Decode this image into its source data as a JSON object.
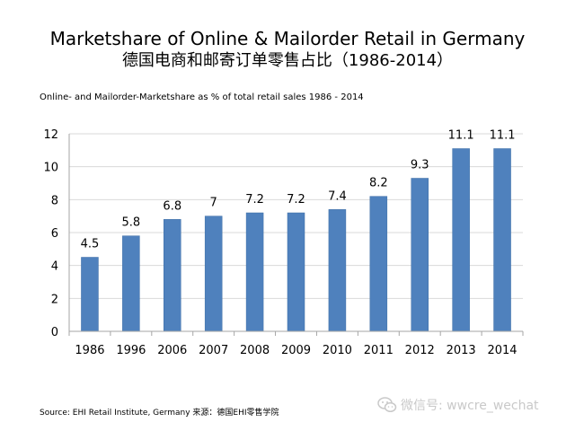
{
  "header": {
    "title": "Marketshare of Online & Mailorder Retail in Germany",
    "subtitle": "德国电商和邮寄订单零售占比（1986-2014）"
  },
  "chart_caption": "Online- and Mailorder-Marketshare as % of total retail sales 1986 - 2014",
  "footer": {
    "source": "Source: EHI Retail  Institute, Germany 来源：德国EHI零售学院",
    "watermark": "微信号: wwcre_wechat",
    "watermark_icon": "wechat-icon"
  },
  "colors": {
    "bar": "#4f81bd",
    "bar_stroke": "#3d6ea6",
    "grid": "#d9d9d9",
    "axis": "#a6a6a6"
  },
  "chart_data": {
    "type": "bar",
    "categories": [
      "1986",
      "1996",
      "2006",
      "2007",
      "2008",
      "2009",
      "2010",
      "2011",
      "2012",
      "2013",
      "2014"
    ],
    "values": [
      4.5,
      5.8,
      6.8,
      7,
      7.2,
      7.2,
      7.4,
      8.2,
      9.3,
      11.1,
      11.1
    ],
    "data_labels": [
      "4.5",
      "5.8",
      "6.8",
      "7",
      "7.2",
      "7.2",
      "7.4",
      "8.2",
      "9.3",
      "11.1",
      "11.1"
    ],
    "yticks": [
      "0",
      "2",
      "4",
      "6",
      "8",
      "10",
      "12"
    ],
    "ylim": [
      0,
      12
    ],
    "grid": true,
    "legend": false
  }
}
